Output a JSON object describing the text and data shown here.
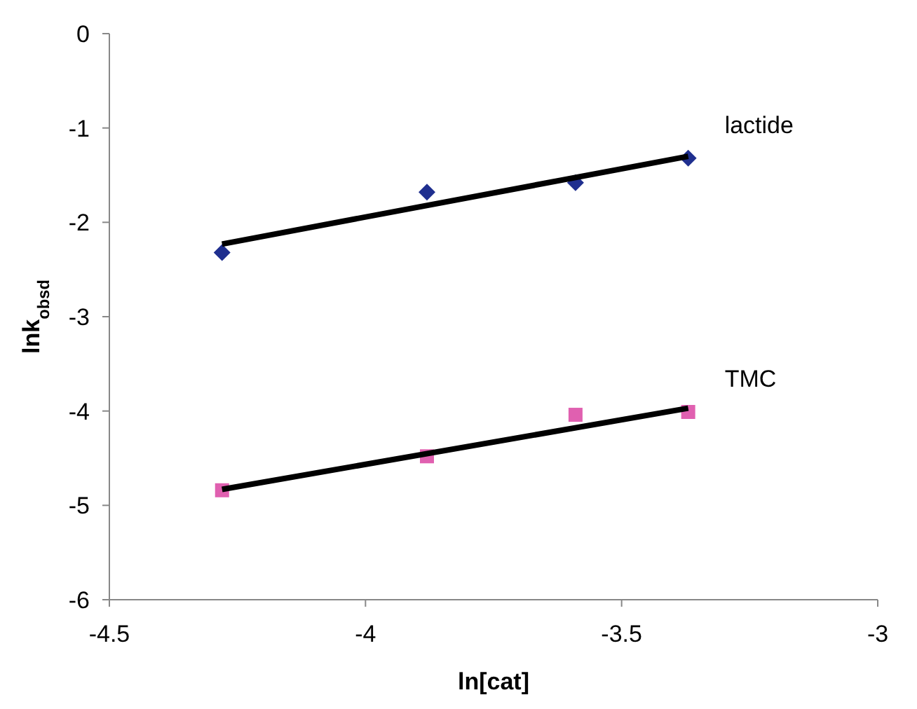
{
  "chart_data": {
    "type": "scatter",
    "xlabel": "ln[cat]",
    "ylabel": "lnk$_{obsd}$",
    "xlim": [
      -4.5,
      -3
    ],
    "xticks": [
      -4.5,
      -4,
      -3.5,
      -3
    ],
    "ylim": [
      -6,
      0
    ],
    "yticks": [
      -6,
      -5,
      -4,
      -3,
      -2,
      -1,
      0
    ],
    "grid": false,
    "series": [
      {
        "name": "lactide",
        "color": "#1f2f8f",
        "marker": "diamond",
        "x": [
          -4.28,
          -3.88,
          -3.59,
          -3.37
        ],
        "values": [
          -2.32,
          -1.68,
          -1.58,
          -1.32
        ]
      },
      {
        "name": "TMC",
        "color": "#e060b0",
        "marker": "square",
        "x": [
          -4.28,
          -3.88,
          -3.59,
          -3.37
        ],
        "values": [
          -4.84,
          -4.48,
          -4.04,
          -4.01
        ]
      },
      {
        "type": "line",
        "color": "#000000",
        "x": [
          -4.28,
          -3.37
        ],
        "values": [
          -2.23,
          -1.3
        ]
      },
      {
        "type": "line",
        "color": "#000000",
        "x": [
          -4.28,
          -3.37
        ],
        "values": [
          -4.83,
          -3.97
        ]
      }
    ]
  }
}
